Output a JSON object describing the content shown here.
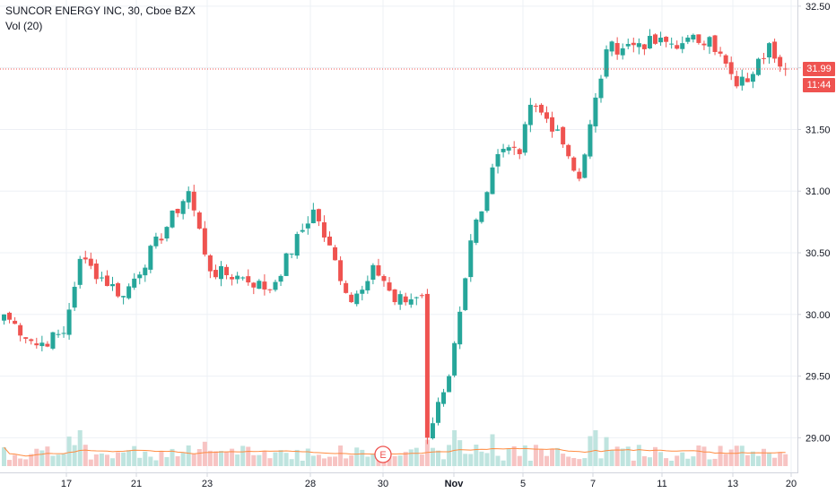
{
  "legend": {
    "title": "SUNCOR ENERGY INC, 30, Cboe BZX",
    "volume": "Vol (20)"
  },
  "price_badge": {
    "price": "31.99",
    "countdown": "11:44"
  },
  "earnings_marker": "E",
  "colors": {
    "up": "#26a69a",
    "down": "#ef5350",
    "up_vol": "#bfe4df",
    "down_vol": "#f7c4c3",
    "vol_ma": "#ff8c42",
    "last_price": "#ef5350",
    "grid": "#edf0f5"
  },
  "chart_data": {
    "type": "candlestick",
    "title": "SUNCOR ENERGY INC, 30, Cboe BZX",
    "y_ticks": [
      "32.50",
      "32.00",
      "31.50",
      "31.00",
      "30.50",
      "30.00",
      "29.50",
      "29.00"
    ],
    "x_ticks": [
      "17",
      "21",
      "23",
      "28",
      "30",
      "Nov",
      "5",
      "7",
      "11",
      "13",
      "20"
    ],
    "y_range": [
      28.77,
      32.55
    ],
    "last_price": 31.99,
    "bars": 145,
    "key_closes": [
      {
        "bar": 0,
        "close": 30.0
      },
      {
        "bar": 6,
        "close": 29.75
      },
      {
        "bar": 11,
        "close": 29.85
      },
      {
        "bar": 14,
        "close": 30.45
      },
      {
        "bar": 22,
        "close": 30.15
      },
      {
        "bar": 34,
        "close": 31.0
      },
      {
        "bar": 38,
        "close": 30.35
      },
      {
        "bar": 44,
        "close": 30.3
      },
      {
        "bar": 49,
        "close": 30.2
      },
      {
        "bar": 57,
        "close": 30.85
      },
      {
        "bar": 64,
        "close": 30.1
      },
      {
        "bar": 68,
        "close": 30.4
      },
      {
        "bar": 72,
        "close": 30.1
      },
      {
        "bar": 77,
        "close": 30.15
      },
      {
        "bar": 78,
        "close": 29.0
      },
      {
        "bar": 82,
        "close": 29.5
      },
      {
        "bar": 86,
        "close": 30.6
      },
      {
        "bar": 91,
        "close": 31.3
      },
      {
        "bar": 95,
        "close": 31.3
      },
      {
        "bar": 97,
        "close": 31.7
      },
      {
        "bar": 102,
        "close": 31.5
      },
      {
        "bar": 106,
        "close": 31.1
      },
      {
        "bar": 111,
        "close": 32.15
      },
      {
        "bar": 117,
        "close": 32.2
      },
      {
        "bar": 125,
        "close": 32.2
      },
      {
        "bar": 130,
        "close": 32.25
      },
      {
        "bar": 135,
        "close": 31.85
      },
      {
        "bar": 138,
        "close": 31.95
      },
      {
        "bar": 141,
        "close": 32.2
      },
      {
        "bar": 144,
        "close": 31.99
      }
    ]
  }
}
